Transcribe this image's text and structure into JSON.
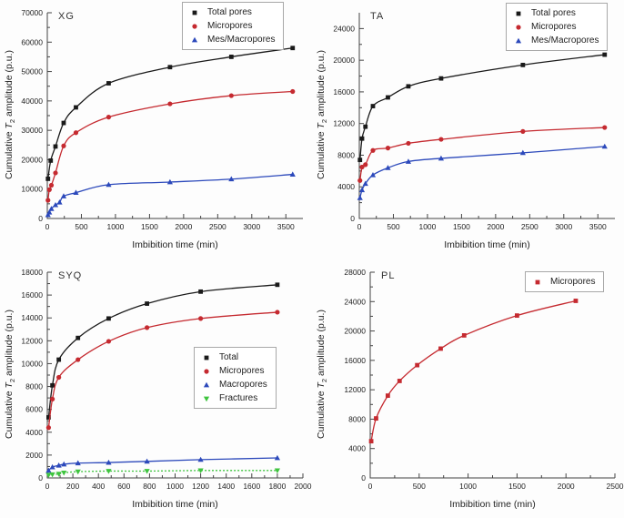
{
  "figure": {
    "background": "#fdfdfd",
    "ylabel_parts": {
      "pre": "Cumulative ",
      "var": "T",
      "sub": "2",
      "post": " amplitude (p.u.)"
    }
  },
  "colors": {
    "black_series": "#1a1a1a",
    "red_series": "#c52a30",
    "blue_series": "#2c49bb",
    "green_series": "#3ec43e",
    "axis": "#444444",
    "tick_text": "#222222"
  },
  "chart_data": [
    {
      "type": "scatter",
      "panel_label": "XG",
      "xlabel": "Imbibition time (min)",
      "ylabel": "Cumulative T2 amplitude (p.u.)",
      "xlim": [
        0,
        3750
      ],
      "ylim": [
        0,
        70000
      ],
      "xticks": [
        0,
        500,
        1000,
        1500,
        2000,
        2500,
        3000,
        3500
      ],
      "yticks": [
        0,
        10000,
        20000,
        30000,
        40000,
        50000,
        60000,
        70000
      ],
      "grid": false,
      "legend_pos": {
        "x": 200,
        "y": 2
      },
      "series": [
        {
          "name": "Total pores",
          "color": "#1a1a1a",
          "marker": "square",
          "dashed": false,
          "x": [
            10,
            50,
            120,
            240,
            420,
            900,
            1800,
            2700,
            3600
          ],
          "y": [
            13500,
            19700,
            24500,
            32500,
            37800,
            46000,
            51500,
            55000,
            58000
          ]
        },
        {
          "name": "Micropores",
          "color": "#c52a30",
          "marker": "circle",
          "dashed": false,
          "x": [
            10,
            30,
            60,
            120,
            240,
            420,
            900,
            1800,
            2700,
            3600
          ],
          "y": [
            6200,
            9800,
            11300,
            15500,
            24700,
            29200,
            34500,
            39000,
            41800,
            43200
          ]
        },
        {
          "name": "Mes/Macropores",
          "color": "#2c49bb",
          "marker": "triangle-up",
          "dashed": false,
          "x": [
            10,
            30,
            60,
            120,
            180,
            240,
            420,
            900,
            1800,
            2700,
            3600
          ],
          "y": [
            1200,
            2100,
            3300,
            4600,
            5500,
            7600,
            8800,
            11500,
            12400,
            13400,
            15000
          ]
        }
      ]
    },
    {
      "type": "scatter",
      "panel_label": "TA",
      "xlabel": "Imbibition time (min)",
      "ylabel": "Cumulative T2 amplitude (p.u.)",
      "xlim": [
        0,
        3750
      ],
      "ylim": [
        0,
        26000
      ],
      "xticks": [
        0,
        500,
        1000,
        1500,
        2000,
        2500,
        3000,
        3500
      ],
      "yticks": [
        0,
        4000,
        8000,
        12000,
        16000,
        20000,
        24000
      ],
      "grid": false,
      "legend_pos": {
        "x": 213,
        "y": 3
      },
      "series": [
        {
          "name": "Total pores",
          "color": "#1a1a1a",
          "marker": "square",
          "dashed": false,
          "x": [
            10,
            40,
            90,
            200,
            420,
            720,
            1200,
            2400,
            3600
          ],
          "y": [
            7400,
            10100,
            11600,
            14200,
            15300,
            16700,
            17700,
            19400,
            20700
          ]
        },
        {
          "name": "Micropores",
          "color": "#c52a30",
          "marker": "circle",
          "dashed": false,
          "x": [
            10,
            40,
            90,
            200,
            420,
            720,
            1200,
            2400,
            3600
          ],
          "y": [
            4800,
            6500,
            6800,
            8600,
            8900,
            9500,
            10000,
            11000,
            11500
          ]
        },
        {
          "name": "Mes/Macropores",
          "color": "#2c49bb",
          "marker": "triangle-up",
          "dashed": false,
          "x": [
            10,
            40,
            90,
            200,
            420,
            720,
            1200,
            2400,
            3600
          ],
          "y": [
            2600,
            3600,
            4400,
            5500,
            6400,
            7200,
            7600,
            8300,
            9100
          ]
        }
      ]
    },
    {
      "type": "scatter",
      "panel_label": "SYQ",
      "xlabel": "Imbibition time (min)",
      "ylabel": "Cumulative T2 amplitude (p.u.)",
      "xlim": [
        0,
        2000
      ],
      "ylim": [
        0,
        18000
      ],
      "xticks": [
        0,
        200,
        400,
        600,
        800,
        1000,
        1200,
        1400,
        1600,
        1800,
        2000
      ],
      "yticks": [
        0,
        2000,
        4000,
        6000,
        8000,
        10000,
        12000,
        14000,
        16000,
        18000
      ],
      "grid": false,
      "legend_pos": {
        "x": 213,
        "y": 96
      },
      "series": [
        {
          "name": "Total",
          "color": "#1a1a1a",
          "marker": "square",
          "dashed": false,
          "x": [
            10,
            40,
            90,
            240,
            480,
            780,
            1200,
            1800
          ],
          "y": [
            5300,
            8100,
            10350,
            12250,
            13950,
            15250,
            16300,
            16900
          ]
        },
        {
          "name": "Micropores",
          "color": "#c52a30",
          "marker": "circle",
          "dashed": false,
          "x": [
            10,
            40,
            90,
            240,
            480,
            780,
            1200,
            1800
          ],
          "y": [
            4400,
            6900,
            8800,
            10350,
            11950,
            13150,
            13950,
            14500
          ]
        },
        {
          "name": "Macropores",
          "color": "#2c49bb",
          "marker": "triangle-up",
          "dashed": false,
          "x": [
            10,
            40,
            90,
            130,
            240,
            480,
            780,
            1200,
            1800
          ],
          "y": [
            650,
            950,
            1100,
            1200,
            1300,
            1350,
            1450,
            1600,
            1750
          ]
        },
        {
          "name": "Fractures",
          "color": "#3ec43e",
          "marker": "triangle-down",
          "dashed": true,
          "x": [
            10,
            40,
            90,
            130,
            240,
            480,
            780,
            1200,
            1800
          ],
          "y": [
            250,
            300,
            350,
            450,
            550,
            600,
            600,
            650,
            650
          ]
        }
      ]
    },
    {
      "type": "scatter",
      "panel_label": "PL",
      "xlabel": "Imbibition time (min)",
      "ylabel": "Cumulative T2 amplitude (p.u.)",
      "xlim": [
        0,
        2500
      ],
      "ylim": [
        0,
        28000
      ],
      "xticks": [
        0,
        500,
        1000,
        1500,
        2000,
        2500
      ],
      "yticks": [
        0,
        4000,
        8000,
        12000,
        16000,
        20000,
        24000,
        28000
      ],
      "grid": false,
      "legend_pos": {
        "x": 234,
        "y": 13
      },
      "series": [
        {
          "name": "Micropores",
          "color": "#c52a30",
          "marker": "square",
          "dashed": false,
          "x": [
            10,
            60,
            180,
            300,
            480,
            720,
            960,
            1500,
            2100
          ],
          "y": [
            5000,
            8100,
            11200,
            13200,
            15350,
            17600,
            19400,
            22100,
            24100
          ]
        }
      ]
    }
  ]
}
